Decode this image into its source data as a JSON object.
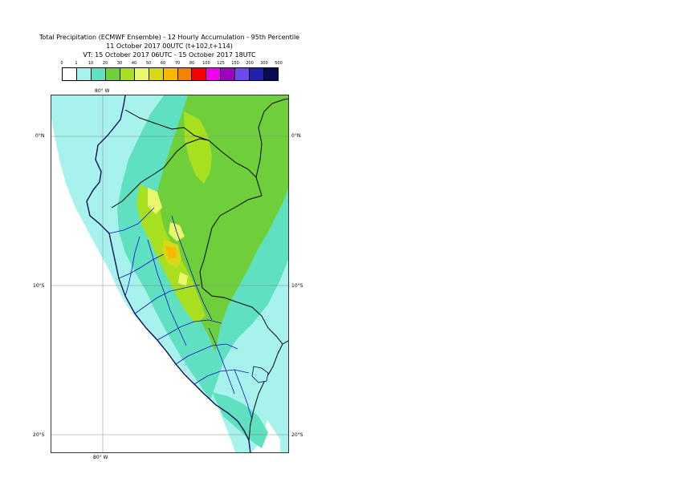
{
  "title": {
    "line1": "Total Precipitation (ECMWF Ensemble) - 12 Hourly Accumulation - 95th Percentile",
    "line2": "11 October 2017 00UTC (t+102,t+114)",
    "line3": "VT: 15 October 2017 06UTC - 15 October 2017 18UTC"
  },
  "legend": {
    "labels": [
      "0",
      "1",
      "10",
      "20",
      "30",
      "40",
      "50",
      "60",
      "70",
      "80",
      "100",
      "125",
      "150",
      "200",
      "300",
      "500"
    ],
    "colors": [
      "#ffffff",
      "#a8f2ee",
      "#5fe0c0",
      "#6fcf3a",
      "#a8e020",
      "#e8f868",
      "#d8d818",
      "#f8b800",
      "#f88000",
      "#f80000",
      "#f000f0",
      "#a000c0",
      "#7048f0",
      "#2020a8",
      "#0a0a50"
    ]
  },
  "map": {
    "lon_labels_top": [
      "80° W"
    ],
    "lon_labels_bottom": [
      "80° W"
    ],
    "lat_labels_left": [
      "0°N",
      "10°S",
      "20°S"
    ],
    "lat_labels_right": [
      "0°N",
      "10°S",
      "20°S"
    ],
    "colors": {
      "land": "#ffffff",
      "coast": "#000050",
      "border": "#000000",
      "admin": "#1010c0",
      "grid": "#888888"
    }
  }
}
